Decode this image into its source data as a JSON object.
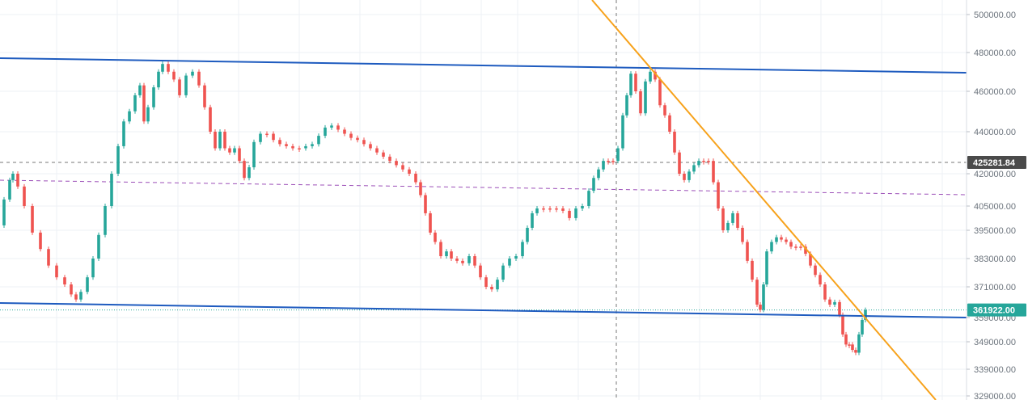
{
  "chart_data": {
    "type": "candlestick",
    "price_axis": {
      "ticks": [
        "500000.00",
        "480000.00",
        "460000.00",
        "440000.00",
        "420000.00",
        "405000.00",
        "395000.00",
        "383000.00",
        "371000.00",
        "359000.00",
        "349000.00",
        "339000.00",
        "329000.00"
      ],
      "scale": "log"
    },
    "price_labels": [
      {
        "text": "425281.84",
        "value": 425281.84,
        "style": "dark"
      },
      {
        "text": "361922.00",
        "value": 361922.0,
        "style": "accent"
      }
    ],
    "crosshair_price": 425281.84,
    "last_price": 361922.0,
    "colors": {
      "up": "#26a69a",
      "down": "#ef5350",
      "channel": "#1e5bbf",
      "trendline": "#f7a21b",
      "reference": "#9c4fb8",
      "label_dark": "#4a4a4a",
      "label_accent": "#26a69a"
    },
    "close_path": [
      [
        0,
        397000
      ],
      [
        5,
        408000
      ],
      [
        12,
        417000
      ],
      [
        16,
        420000
      ],
      [
        22,
        414000
      ],
      [
        30,
        405000
      ],
      [
        40,
        394000
      ],
      [
        50,
        387000
      ],
      [
        60,
        380000
      ],
      [
        70,
        375000
      ],
      [
        80,
        372000
      ],
      [
        88,
        368000
      ],
      [
        94,
        366000
      ],
      [
        100,
        369000
      ],
      [
        108,
        375000
      ],
      [
        115,
        383000
      ],
      [
        122,
        393000
      ],
      [
        130,
        405000
      ],
      [
        138,
        420000
      ],
      [
        146,
        433000
      ],
      [
        153,
        445000
      ],
      [
        160,
        450000
      ],
      [
        167,
        458000
      ],
      [
        173,
        463000
      ],
      [
        178,
        445000
      ],
      [
        183,
        452000
      ],
      [
        190,
        462000
      ],
      [
        196,
        470000
      ],
      [
        201,
        474000
      ],
      [
        208,
        470000
      ],
      [
        215,
        466000
      ],
      [
        222,
        458000
      ],
      [
        230,
        468000
      ],
      [
        238,
        470000
      ],
      [
        246,
        463000
      ],
      [
        253,
        452000
      ],
      [
        260,
        440000
      ],
      [
        266,
        432000
      ],
      [
        272,
        440000
      ],
      [
        278,
        432000
      ],
      [
        284,
        430000
      ],
      [
        290,
        432000
      ],
      [
        296,
        426000
      ],
      [
        302,
        418000
      ],
      [
        308,
        423000
      ],
      [
        314,
        435000
      ],
      [
        322,
        439000
      ],
      [
        330,
        439000
      ],
      [
        338,
        436000
      ],
      [
        346,
        434000
      ],
      [
        354,
        433000
      ],
      [
        362,
        432000
      ],
      [
        370,
        432000
      ],
      [
        378,
        433000
      ],
      [
        386,
        434000
      ],
      [
        394,
        438000
      ],
      [
        402,
        442000
      ],
      [
        410,
        443000
      ],
      [
        418,
        441000
      ],
      [
        426,
        439000
      ],
      [
        434,
        437000
      ],
      [
        442,
        436000
      ],
      [
        450,
        434000
      ],
      [
        458,
        432000
      ],
      [
        466,
        430000
      ],
      [
        474,
        428000
      ],
      [
        482,
        426000
      ],
      [
        490,
        424000
      ],
      [
        498,
        422000
      ],
      [
        506,
        420000
      ],
      [
        514,
        416000
      ],
      [
        520,
        410000
      ],
      [
        526,
        402000
      ],
      [
        532,
        394000
      ],
      [
        538,
        390000
      ],
      [
        545,
        384000
      ],
      [
        552,
        386000
      ],
      [
        558,
        383000
      ],
      [
        565,
        382000
      ],
      [
        572,
        381000
      ],
      [
        580,
        384000
      ],
      [
        587,
        380000
      ],
      [
        594,
        375000
      ],
      [
        601,
        371000
      ],
      [
        608,
        370000
      ],
      [
        615,
        374000
      ],
      [
        622,
        380000
      ],
      [
        630,
        383000
      ],
      [
        638,
        384000
      ],
      [
        646,
        390000
      ],
      [
        652,
        396000
      ],
      [
        658,
        402000
      ],
      [
        664,
        404000
      ],
      [
        672,
        404000
      ],
      [
        680,
        404000
      ],
      [
        688,
        404000
      ],
      [
        696,
        403000
      ],
      [
        704,
        400000
      ],
      [
        712,
        404000
      ],
      [
        720,
        405000
      ],
      [
        728,
        412000
      ],
      [
        734,
        418000
      ],
      [
        740,
        422000
      ],
      [
        746,
        426000
      ],
      [
        752,
        426000
      ],
      [
        758,
        426000
      ],
      [
        764,
        432000
      ],
      [
        770,
        448000
      ],
      [
        775,
        458000
      ],
      [
        780,
        469000
      ],
      [
        786,
        460000
      ],
      [
        792,
        449000
      ],
      [
        798,
        465000
      ],
      [
        804,
        470000
      ],
      [
        810,
        466000
      ],
      [
        816,
        453000
      ],
      [
        822,
        448000
      ],
      [
        828,
        440000
      ],
      [
        834,
        430000
      ],
      [
        840,
        420000
      ],
      [
        846,
        417000
      ],
      [
        852,
        421000
      ],
      [
        858,
        424000
      ],
      [
        864,
        426000
      ],
      [
        870,
        426000
      ],
      [
        876,
        426000
      ],
      [
        882,
        416000
      ],
      [
        888,
        404000
      ],
      [
        894,
        395000
      ],
      [
        900,
        398000
      ],
      [
        906,
        402000
      ],
      [
        912,
        396000
      ],
      [
        918,
        390000
      ],
      [
        924,
        382000
      ],
      [
        930,
        374000
      ],
      [
        936,
        364000
      ],
      [
        940,
        362000
      ],
      [
        944,
        372000
      ],
      [
        948,
        386000
      ],
      [
        954,
        390000
      ],
      [
        960,
        392000
      ],
      [
        966,
        391000
      ],
      [
        972,
        390000
      ],
      [
        978,
        388000
      ],
      [
        984,
        388000
      ],
      [
        990,
        388000
      ],
      [
        996,
        385000
      ],
      [
        1002,
        380000
      ],
      [
        1008,
        376000
      ],
      [
        1014,
        372000
      ],
      [
        1020,
        366000
      ],
      [
        1026,
        364000
      ],
      [
        1032,
        365000
      ],
      [
        1038,
        360000
      ],
      [
        1042,
        352000
      ],
      [
        1046,
        348000
      ],
      [
        1050,
        348000
      ],
      [
        1054,
        346000
      ],
      [
        1058,
        345000
      ],
      [
        1062,
        352000
      ],
      [
        1066,
        358000
      ],
      [
        1070,
        361922
      ]
    ]
  }
}
